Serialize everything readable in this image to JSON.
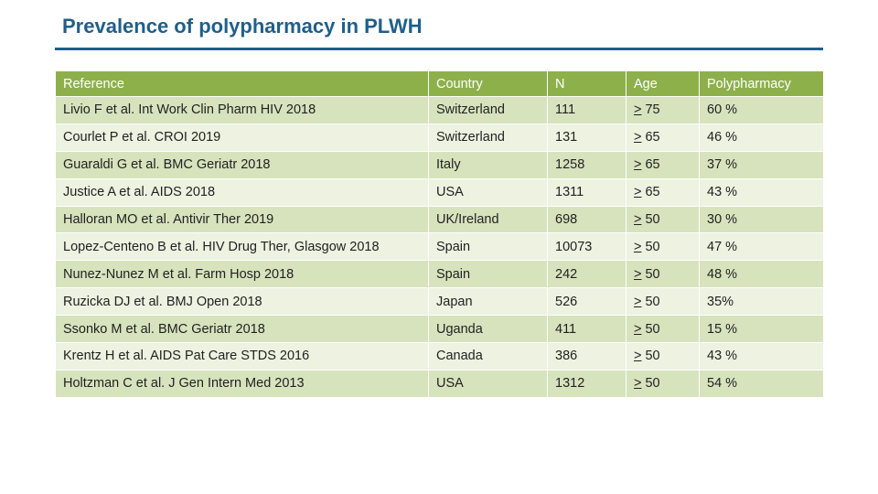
{
  "title": "Prevalence of polypharmacy in PLWH",
  "table": {
    "headers": [
      "Reference",
      "Country",
      "N",
      "Age",
      "Polypharmacy"
    ],
    "rows": [
      {
        "reference": "Livio F et al. Int Work Clin Pharm HIV 2018",
        "country": "Switzerland",
        "n": "111",
        "age_sym": ">",
        "age_val": " 75",
        "poly": "60 %"
      },
      {
        "reference": "Courlet P et al. CROI 2019",
        "country": "Switzerland",
        "n": "131",
        "age_sym": ">",
        "age_val": " 65",
        "poly": "46 %"
      },
      {
        "reference": "Guaraldi G et al. BMC Geriatr 2018",
        "country": "Italy",
        "n": "1258",
        "age_sym": ">",
        "age_val": " 65",
        "poly": "37 %"
      },
      {
        "reference": "Justice A et al. AIDS 2018",
        "country": "USA",
        "n": "1311",
        "age_sym": ">",
        "age_val": " 65",
        "poly": "43 %"
      },
      {
        "reference": "Halloran MO et al. Antivir Ther 2019",
        "country": "UK/Ireland",
        "n": "698",
        "age_sym": ">",
        "age_val": " 50",
        "poly": "30 %"
      },
      {
        "reference": "Lopez-Centeno B et al. HIV Drug Ther, Glasgow 2018",
        "country": "Spain",
        "n": "10073",
        "age_sym": ">",
        "age_val": " 50",
        "poly": "47 %"
      },
      {
        "reference": "Nunez-Nunez M et al. Farm Hosp 2018",
        "country": "Spain",
        "n": "242",
        "age_sym": ">",
        "age_val": " 50",
        "poly": "48 %"
      },
      {
        "reference": "Ruzicka DJ et al. BMJ Open 2018",
        "country": "Japan",
        "n": "526",
        "age_sym": ">",
        "age_val": " 50",
        "poly": "35%"
      },
      {
        "reference": "Ssonko M et al. BMC Geriatr 2018",
        "country": "Uganda",
        "n": "411",
        "age_sym": ">",
        "age_val": " 50",
        "poly": "15 %"
      },
      {
        "reference": "Krentz H et al. AIDS Pat Care STDS 2016",
        "country": "Canada",
        "n": "386",
        "age_sym": ">",
        "age_val": " 50",
        "poly": "43 %"
      },
      {
        "reference": "Holtzman C et al. J Gen Intern Med 2013",
        "country": "USA",
        "n": "1312",
        "age_sym": ">",
        "age_val": " 50",
        "poly": "54 %"
      }
    ]
  },
  "colors": {
    "title": "#1f5f8b",
    "header_bg": "#8db04b",
    "row_odd": "#d6e3bd",
    "row_even": "#edf2e1"
  }
}
